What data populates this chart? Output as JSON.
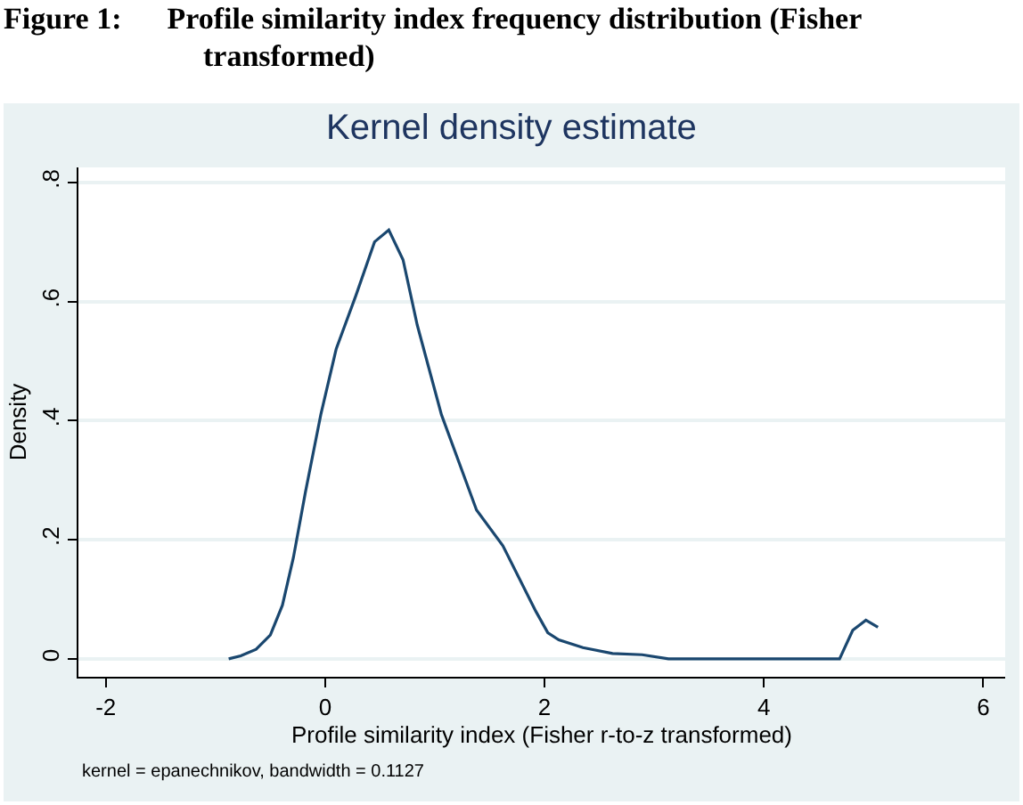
{
  "chart_data": {
    "type": "line",
    "title": "Figure 1:      Profile similarity index frequency distribution (Fisher transformed)",
    "subtitle": "Kernel density estimate",
    "xlabel": "Profile similarity index (Fisher r-to-z transformed)",
    "ylabel": "Density",
    "annotations": [
      "kernel = epanechnikov, bandwidth = 0.1127"
    ],
    "x": [
      -0.88,
      -0.77,
      -0.63,
      -0.5,
      -0.39,
      -0.29,
      -0.18,
      -0.04,
      0.1,
      0.28,
      0.45,
      0.58,
      0.71,
      0.84,
      1.06,
      1.38,
      1.62,
      1.92,
      2.03,
      2.13,
      2.35,
      2.62,
      2.89,
      3.13,
      4.69,
      4.81,
      4.93,
      5.04
    ],
    "series": [
      {
        "color": "#1a476f",
        "values": [
          0.0,
          0.005,
          0.016,
          0.04,
          0.09,
          0.17,
          0.28,
          0.41,
          0.52,
          0.61,
          0.7,
          0.72,
          0.67,
          0.56,
          0.41,
          0.25,
          0.19,
          0.08,
          0.044,
          0.032,
          0.019,
          0.009,
          0.007,
          0,
          0,
          0.048,
          0.065,
          0.053
        ]
      }
    ],
    "xlim": [
      -2.25,
      6.2
    ],
    "xticks": [
      -2,
      0,
      2,
      4,
      6
    ],
    "ylim": [
      -0.03,
      0.825
    ],
    "yticks": [
      0,
      {
        "value": 0.2,
        "label": ".2"
      },
      {
        "value": 0.4,
        "label": ".4"
      },
      {
        "value": 0.6,
        "label": ".6"
      },
      {
        "value": 0.8,
        "label": ".8"
      }
    ],
    "grid": "y",
    "marker": "none",
    "line_style": "solid"
  }
}
